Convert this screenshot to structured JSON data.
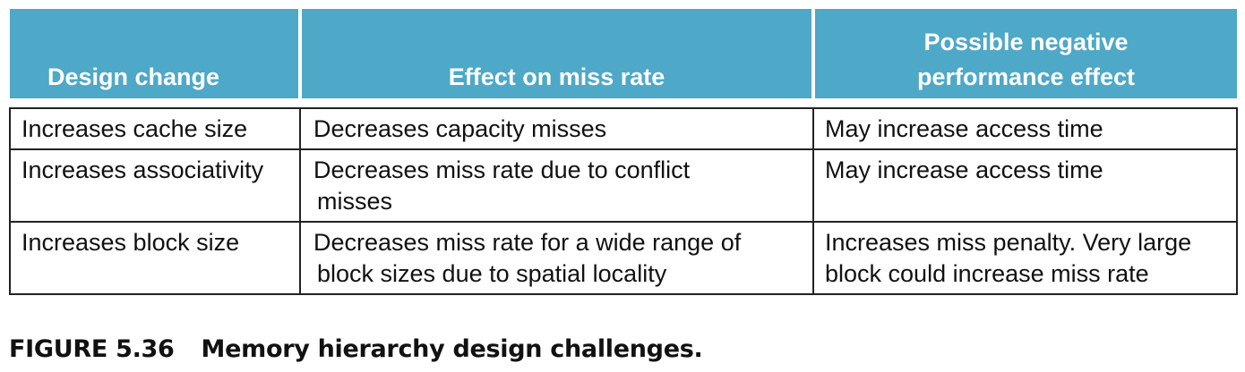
{
  "table": {
    "headers": [
      {
        "lines": [
          "Design change"
        ]
      },
      {
        "lines": [
          "Effect on miss rate"
        ]
      },
      {
        "lines": [
          "Possible negative",
          "performance effect"
        ]
      }
    ],
    "rows": [
      {
        "design_change": "Increases cache size",
        "effect": [
          "Decreases capacity misses"
        ],
        "negative_effect": [
          "May increase access time"
        ]
      },
      {
        "design_change": "Increases associativity",
        "effect": [
          "Decreases miss rate due to conflict",
          "misses"
        ],
        "negative_effect": [
          "May increase access time"
        ]
      },
      {
        "design_change": "Increases block size",
        "effect": [
          "Decreases miss rate for a wide range of",
          "block sizes due to spatial locality"
        ],
        "negative_effect": [
          "Increases miss penalty. Very large",
          "block could increase miss rate"
        ]
      }
    ]
  },
  "caption": {
    "figure_number": "FIGURE 5.36",
    "title": "Memory hierarchy design challenges."
  },
  "colors": {
    "header_background": "#4ea8c8",
    "header_text": "#ffffff",
    "border": "#222222"
  }
}
